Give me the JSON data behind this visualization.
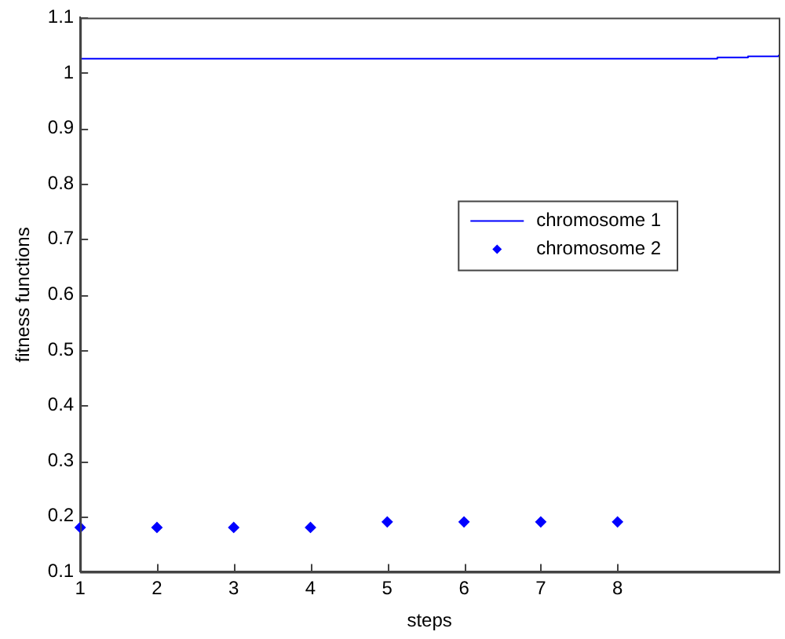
{
  "chart_data": {
    "type": "step",
    "xlabel": "steps",
    "ylabel": "fitness functions",
    "xlim": [
      1,
      10.1
    ],
    "xticks": [
      1,
      2,
      3,
      4,
      5,
      6,
      7,
      8
    ],
    "ylim": [
      0.1,
      1.1
    ],
    "yticks": [
      0.1,
      0.2,
      0.3,
      0.4,
      0.5,
      0.6,
      0.7,
      0.8,
      0.9,
      1,
      1.1
    ],
    "grid": false,
    "legend": "right",
    "series": [
      {
        "name": "chromosome 1",
        "color": "#0000ff",
        "x": [
          1,
          9.3,
          9.7,
          10.1
        ],
        "values": [
          1.026,
          1.028,
          1.03,
          1.033
        ],
        "marker": "none",
        "line_style": "solid"
      },
      {
        "name": "chromosome 2",
        "type": "scatter",
        "color": "#0000ff",
        "x": [
          1,
          2,
          3,
          4,
          5,
          6,
          7,
          8
        ],
        "values": [
          0.18,
          0.18,
          0.18,
          0.18,
          0.19,
          0.19,
          0.19,
          0.19
        ],
        "marker": "diamond"
      }
    ]
  }
}
